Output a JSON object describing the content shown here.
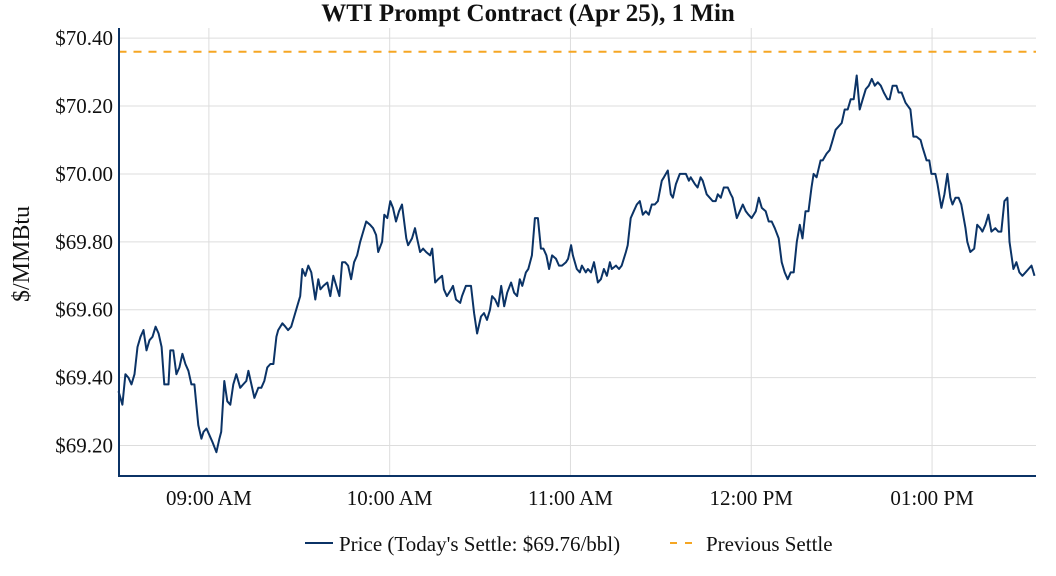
{
  "chart_data": {
    "type": "line",
    "title": "WTI Prompt Contract (Apr 25), 1 Min",
    "xlabel": "",
    "ylabel": "$/MMBtu",
    "x_unit": "minutes since 08:30 AM",
    "xlim": [
      0,
      304.5
    ],
    "ylim": [
      69.11,
      70.43
    ],
    "grid": true,
    "legend_position": "bottom-center",
    "x_ticks": [
      {
        "value": 30,
        "label": "09:00 AM"
      },
      {
        "value": 90,
        "label": "10:00 AM"
      },
      {
        "value": 150,
        "label": "11:00 AM"
      },
      {
        "value": 210,
        "label": "12:00 PM"
      },
      {
        "value": 270,
        "label": "01:00 PM"
      }
    ],
    "y_ticks": [
      {
        "value": 70.4,
        "label": "$70.40"
      },
      {
        "value": 70.2,
        "label": "$70.20"
      },
      {
        "value": 70.0,
        "label": "$70.00"
      },
      {
        "value": 69.8,
        "label": "$69.80"
      },
      {
        "value": 69.6,
        "label": "$69.60"
      },
      {
        "value": 69.4,
        "label": "$69.40"
      },
      {
        "value": 69.2,
        "label": "$69.20"
      }
    ],
    "series": [
      {
        "name": "Price (Today's Settle: $69.76/bbl)",
        "color": "#0b3366",
        "style": "solid",
        "points": [
          [
            0,
            69.36
          ],
          [
            1.3,
            69.32
          ],
          [
            2.3,
            69.41
          ],
          [
            3.3,
            69.4
          ],
          [
            4.3,
            69.38
          ],
          [
            5.3,
            69.41
          ],
          [
            6.3,
            69.49
          ],
          [
            7.3,
            69.52
          ],
          [
            8.3,
            69.54
          ],
          [
            9.3,
            69.48
          ],
          [
            10.3,
            69.51
          ],
          [
            11.3,
            69.52
          ],
          [
            12.3,
            69.55
          ],
          [
            13.3,
            69.53
          ],
          [
            14.3,
            69.49
          ],
          [
            15.2,
            69.38
          ],
          [
            16.6,
            69.38
          ],
          [
            17.2,
            69.48
          ],
          [
            18.2,
            69.48
          ],
          [
            19.2,
            69.41
          ],
          [
            20.2,
            69.43
          ],
          [
            21.2,
            69.47
          ],
          [
            22.2,
            69.44
          ],
          [
            23.2,
            69.42
          ],
          [
            24.2,
            69.38
          ],
          [
            25.2,
            69.38
          ],
          [
            26.5,
            69.26
          ],
          [
            27.5,
            69.22
          ],
          [
            28.2,
            69.24
          ],
          [
            29.2,
            69.25
          ],
          [
            30.2,
            69.23
          ],
          [
            31.2,
            69.21
          ],
          [
            32.5,
            69.18
          ],
          [
            33.5,
            69.22
          ],
          [
            34.1,
            69.24
          ],
          [
            35.1,
            69.39
          ],
          [
            36.1,
            69.33
          ],
          [
            37.1,
            69.32
          ],
          [
            38.1,
            69.38
          ],
          [
            39.1,
            69.41
          ],
          [
            40.4,
            69.37
          ],
          [
            41.4,
            69.38
          ],
          [
            42.4,
            69.39
          ],
          [
            43.1,
            69.42
          ],
          [
            44.1,
            69.38
          ],
          [
            45.1,
            69.34
          ],
          [
            46.4,
            69.37
          ],
          [
            47.4,
            69.37
          ],
          [
            48.4,
            69.39
          ],
          [
            49.4,
            69.43
          ],
          [
            50.4,
            69.44
          ],
          [
            51.4,
            69.44
          ],
          [
            52.4,
            69.52
          ],
          [
            53.0,
            69.54
          ],
          [
            54.4,
            69.56
          ],
          [
            55.4,
            69.55
          ],
          [
            56.3,
            69.54
          ],
          [
            57.3,
            69.55
          ],
          [
            58.3,
            69.58
          ],
          [
            59.3,
            69.61
          ],
          [
            60.3,
            69.64
          ],
          [
            61,
            69.72
          ],
          [
            62,
            69.7
          ],
          [
            63,
            69.73
          ],
          [
            64,
            69.71
          ],
          [
            65.3,
            69.63
          ],
          [
            66.3,
            69.69
          ],
          [
            67,
            69.66
          ],
          [
            68,
            69.67
          ],
          [
            69.3,
            69.68
          ],
          [
            70.3,
            69.64
          ],
          [
            71.3,
            69.7
          ],
          [
            72.3,
            69.67
          ],
          [
            73.3,
            69.64
          ],
          [
            74.2,
            69.74
          ],
          [
            75.2,
            69.74
          ],
          [
            76.2,
            69.73
          ],
          [
            77.2,
            69.69
          ],
          [
            78.2,
            69.74
          ],
          [
            79.2,
            69.76
          ],
          [
            80.2,
            69.8
          ],
          [
            81.2,
            69.83
          ],
          [
            82.2,
            69.86
          ],
          [
            83.5,
            69.85
          ],
          [
            84.5,
            69.84
          ],
          [
            85.5,
            69.82
          ],
          [
            86.2,
            69.77
          ],
          [
            87.5,
            69.8
          ],
          [
            88.2,
            69.88
          ],
          [
            89.2,
            69.87
          ],
          [
            90.2,
            69.92
          ],
          [
            91.1,
            69.9
          ],
          [
            92.1,
            69.86
          ],
          [
            93.1,
            69.89
          ],
          [
            94.1,
            69.91
          ],
          [
            95.5,
            69.81
          ],
          [
            96.1,
            69.79
          ],
          [
            97.4,
            69.81
          ],
          [
            98.4,
            69.84
          ],
          [
            99.1,
            69.81
          ],
          [
            100.1,
            69.77
          ],
          [
            101.1,
            69.78
          ],
          [
            102.1,
            69.77
          ],
          [
            103.4,
            69.76
          ],
          [
            104.1,
            69.78
          ],
          [
            105.1,
            69.68
          ],
          [
            106.1,
            69.69
          ],
          [
            107.4,
            69.7
          ],
          [
            108,
            69.66
          ],
          [
            109,
            69.64
          ],
          [
            110.4,
            69.66
          ],
          [
            111,
            69.67
          ],
          [
            112,
            69.63
          ],
          [
            113.4,
            69.62
          ],
          [
            114,
            69.64
          ],
          [
            115.3,
            69.67
          ],
          [
            117,
            69.67
          ],
          [
            118,
            69.59
          ],
          [
            119,
            69.53
          ],
          [
            120.3,
            69.58
          ],
          [
            121.3,
            69.59
          ],
          [
            122.3,
            69.57
          ],
          [
            123.3,
            69.6
          ],
          [
            124,
            69.64
          ],
          [
            125,
            69.63
          ],
          [
            126,
            69.61
          ],
          [
            127,
            69.67
          ],
          [
            128,
            69.61
          ],
          [
            129,
            69.65
          ],
          [
            130.3,
            69.68
          ],
          [
            131.3,
            69.65
          ],
          [
            132.3,
            69.64
          ],
          [
            133.2,
            69.69
          ],
          [
            134,
            69.67
          ],
          [
            135.2,
            69.71
          ],
          [
            136,
            69.72
          ],
          [
            137.2,
            69.76
          ],
          [
            138.2,
            69.87
          ],
          [
            139.2,
            69.87
          ],
          [
            140.2,
            69.78
          ],
          [
            141,
            69.78
          ],
          [
            142,
            69.76
          ],
          [
            142.9,
            69.72
          ],
          [
            143.9,
            69.76
          ],
          [
            145.2,
            69.75
          ],
          [
            146.2,
            69.73
          ],
          [
            147.2,
            69.73
          ],
          [
            148.5,
            69.74
          ],
          [
            149.2,
            69.75
          ],
          [
            150.2,
            69.79
          ],
          [
            150.8,
            69.76
          ],
          [
            152.1,
            69.72
          ],
          [
            153.1,
            69.71
          ],
          [
            153.8,
            69.73
          ],
          [
            155.1,
            69.71
          ],
          [
            155.8,
            69.72
          ],
          [
            156.8,
            69.71
          ],
          [
            157.8,
            69.74
          ],
          [
            159.1,
            69.68
          ],
          [
            160.1,
            69.69
          ],
          [
            161.1,
            69.72
          ],
          [
            162.1,
            69.7
          ],
          [
            163.1,
            69.74
          ],
          [
            163.7,
            69.72
          ],
          [
            165.1,
            69.73
          ],
          [
            166.1,
            69.72
          ],
          [
            167,
            69.73
          ],
          [
            168.4,
            69.77
          ],
          [
            169,
            69.79
          ],
          [
            170,
            69.87
          ],
          [
            171,
            69.89
          ],
          [
            172,
            69.91
          ],
          [
            173,
            69.92
          ],
          [
            174,
            69.88
          ],
          [
            175,
            69.89
          ],
          [
            176,
            69.88
          ],
          [
            177,
            69.91
          ],
          [
            178,
            69.91
          ],
          [
            179,
            69.92
          ],
          [
            180.3,
            69.98
          ],
          [
            181,
            69.99
          ],
          [
            182.3,
            70.01
          ],
          [
            183.3,
            69.94
          ],
          [
            184,
            69.93
          ],
          [
            185,
            69.97
          ],
          [
            186.3,
            70.0
          ],
          [
            188.3,
            70.0
          ],
          [
            189.3,
            69.98
          ],
          [
            189.9,
            69.99
          ],
          [
            191.3,
            69.97
          ],
          [
            192.2,
            69.96
          ],
          [
            193.2,
            69.99
          ],
          [
            193.9,
            69.98
          ],
          [
            195.2,
            69.94
          ],
          [
            196.2,
            69.93
          ],
          [
            197.2,
            69.92
          ],
          [
            198.2,
            69.92
          ],
          [
            198.9,
            69.94
          ],
          [
            199.9,
            69.93
          ],
          [
            200.9,
            69.96
          ],
          [
            202.2,
            69.96
          ],
          [
            203.2,
            69.94
          ],
          [
            203.8,
            69.93
          ],
          [
            205.2,
            69.87
          ],
          [
            206.2,
            69.89
          ],
          [
            207.2,
            69.91
          ],
          [
            208.2,
            69.89
          ],
          [
            209.1,
            69.88
          ],
          [
            210.1,
            69.87
          ],
          [
            211.5,
            69.89
          ],
          [
            212.5,
            69.93
          ],
          [
            213.5,
            69.9
          ],
          [
            214.8,
            69.89
          ],
          [
            215.8,
            69.86
          ],
          [
            216.8,
            69.86
          ],
          [
            217.8,
            69.84
          ],
          [
            219.1,
            69.81
          ],
          [
            220.1,
            69.74
          ],
          [
            221.1,
            69.71
          ],
          [
            222.1,
            69.69
          ],
          [
            223.1,
            69.71
          ],
          [
            224.1,
            69.71
          ],
          [
            225.1,
            69.8
          ],
          [
            226.1,
            69.85
          ],
          [
            227,
            69.81
          ],
          [
            228,
            69.89
          ],
          [
            229,
            69.89
          ],
          [
            230,
            69.96
          ],
          [
            230.7,
            70.0
          ],
          [
            231.7,
            69.99
          ],
          [
            233,
            70.04
          ],
          [
            233.7,
            70.04
          ],
          [
            235,
            70.06
          ],
          [
            236,
            70.07
          ],
          [
            236.7,
            70.09
          ],
          [
            238,
            70.13
          ],
          [
            240,
            70.15
          ],
          [
            241,
            70.19
          ],
          [
            242,
            70.19
          ],
          [
            243,
            70.22
          ],
          [
            244,
            70.22
          ],
          [
            245,
            70.29
          ],
          [
            246,
            70.19
          ],
          [
            247,
            70.22
          ],
          [
            248,
            70.25
          ],
          [
            249,
            70.26
          ],
          [
            250,
            70.28
          ],
          [
            251,
            70.26
          ],
          [
            252,
            70.27
          ],
          [
            253,
            70.26
          ],
          [
            254,
            70.24
          ],
          [
            255.2,
            70.22
          ],
          [
            255.9,
            70.22
          ],
          [
            256.9,
            70.26
          ],
          [
            258.2,
            70.26
          ],
          [
            258.9,
            70.24
          ],
          [
            259.9,
            70.24
          ],
          [
            261.2,
            70.21
          ],
          [
            262.8,
            70.19
          ],
          [
            263.8,
            70.11
          ],
          [
            264.8,
            70.11
          ],
          [
            266.2,
            70.1
          ],
          [
            266.8,
            70.08
          ],
          [
            268.2,
            70.04
          ],
          [
            269.1,
            70.04
          ],
          [
            269.8,
            70.0
          ],
          [
            271.1,
            70.0
          ],
          [
            271.8,
            69.97
          ],
          [
            273.1,
            69.9
          ],
          [
            274.1,
            69.94
          ],
          [
            275.1,
            70.0
          ],
          [
            276.1,
            69.93
          ],
          [
            276.8,
            69.91
          ],
          [
            277.8,
            69.93
          ],
          [
            278.8,
            69.93
          ],
          [
            279.7,
            69.91
          ],
          [
            281.1,
            69.84
          ],
          [
            281.7,
            69.8
          ],
          [
            282.7,
            69.77
          ],
          [
            284,
            69.78
          ],
          [
            285,
            69.85
          ],
          [
            286,
            69.84
          ],
          [
            286.7,
            69.83
          ],
          [
            287.7,
            69.85
          ],
          [
            288.7,
            69.88
          ],
          [
            289.7,
            69.83
          ],
          [
            291,
            69.84
          ],
          [
            292,
            69.83
          ],
          [
            293,
            69.83
          ],
          [
            294,
            69.92
          ],
          [
            295,
            69.93
          ],
          [
            295.7,
            69.8
          ],
          [
            297,
            69.72
          ],
          [
            298,
            69.74
          ],
          [
            299,
            69.71
          ],
          [
            300,
            69.7
          ],
          [
            301,
            69.71
          ],
          [
            302,
            69.72
          ],
          [
            303,
            69.73
          ],
          [
            304,
            69.7
          ]
        ]
      },
      {
        "name": "Previous Settle",
        "color": "#f5a623",
        "style": "dashed",
        "value": 70.36
      }
    ],
    "colors": {
      "axis": "#0b3366",
      "grid": "#dddddd"
    }
  }
}
